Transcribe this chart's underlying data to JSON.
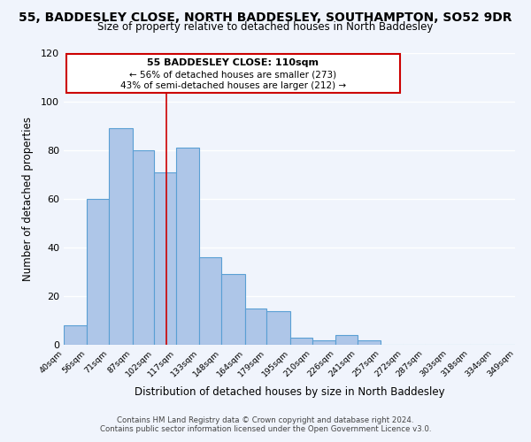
{
  "title": "55, BADDESLEY CLOSE, NORTH BADDESLEY, SOUTHAMPTON, SO52 9DR",
  "subtitle": "Size of property relative to detached houses in North Baddesley",
  "xlabel": "Distribution of detached houses by size in North Baddesley",
  "ylabel": "Number of detached properties",
  "bar_edges": [
    40,
    56,
    71,
    87,
    102,
    117,
    133,
    148,
    164,
    179,
    195,
    210,
    226,
    241,
    257,
    272,
    287,
    303,
    318,
    334,
    349
  ],
  "bar_heights": [
    8,
    60,
    89,
    80,
    71,
    81,
    36,
    29,
    15,
    14,
    3,
    2,
    4,
    2,
    0,
    0,
    0,
    0,
    0,
    0
  ],
  "bar_color": "#aec6e8",
  "bar_edgecolor": "#5a9fd4",
  "property_line_x": 110,
  "property_line_color": "#cc0000",
  "annotation_text_line1": "55 BADDESLEY CLOSE: 110sqm",
  "annotation_text_line2": "← 56% of detached houses are smaller (273)",
  "annotation_text_line3": "43% of semi-detached houses are larger (212) →",
  "ylim": [
    0,
    120
  ],
  "tick_labels": [
    "40sqm",
    "56sqm",
    "71sqm",
    "87sqm",
    "102sqm",
    "117sqm",
    "133sqm",
    "148sqm",
    "164sqm",
    "179sqm",
    "195sqm",
    "210sqm",
    "226sqm",
    "241sqm",
    "257sqm",
    "272sqm",
    "287sqm",
    "303sqm",
    "318sqm",
    "334sqm",
    "349sqm"
  ],
  "footer_line1": "Contains HM Land Registry data © Crown copyright and database right 2024.",
  "footer_line2": "Contains public sector information licensed under the Open Government Licence v3.0.",
  "background_color": "#f0f4fc",
  "plot_bg_color": "#f0f4fc"
}
